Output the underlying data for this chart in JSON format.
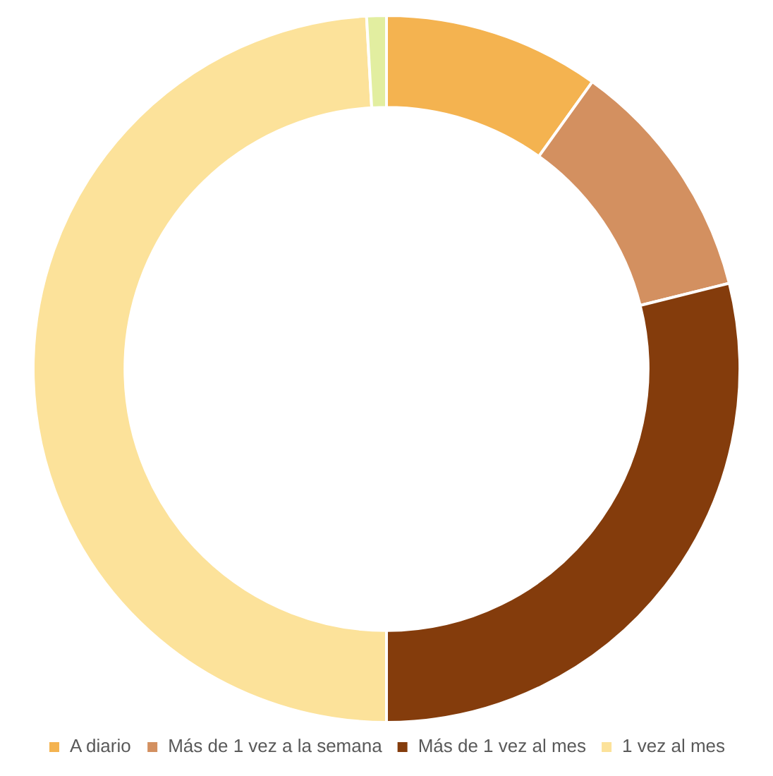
{
  "chart_data": {
    "type": "donut",
    "categories": [
      "A diario",
      "Más de 1 vez a la semana",
      "Más de 1 vez al mes",
      "1 vez al mes",
      null
    ],
    "values": [
      9.9,
      11.2,
      28.9,
      49.1,
      0.9
    ],
    "colors": [
      "#f4b350",
      "#d39060",
      "#843c0c",
      "#fce29a",
      "#e2eea0"
    ],
    "legend": "bottom"
  }
}
